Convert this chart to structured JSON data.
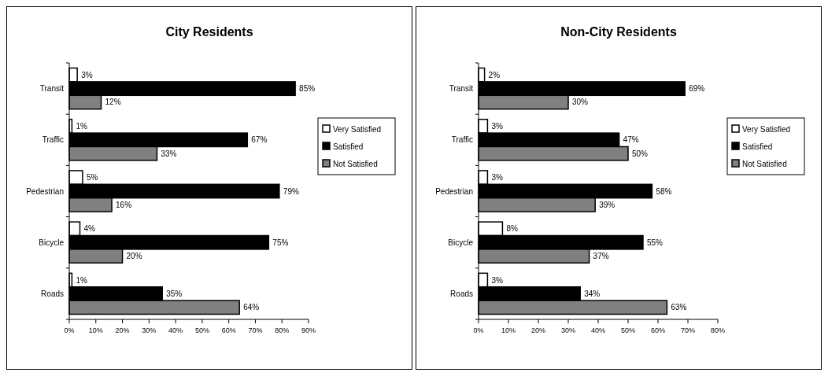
{
  "chart_data": [
    {
      "type": "bar",
      "orientation": "horizontal",
      "title": "City Residents",
      "categories": [
        "Transit",
        "Traffic",
        "Pedestrian",
        "Bicycle",
        "Roads"
      ],
      "series": [
        {
          "name": "Very Satisfied",
          "color": "#ffffff",
          "values": [
            3,
            1,
            5,
            4,
            1
          ],
          "value_labels": [
            "3%",
            "1%",
            "5%",
            "4%",
            "1%"
          ]
        },
        {
          "name": "Satisfied",
          "color": "#000000",
          "values": [
            85,
            67,
            79,
            75,
            35
          ],
          "value_labels": [
            "85%",
            "67%",
            "79%",
            "75%",
            "35%"
          ]
        },
        {
          "name": "Not Satisfied",
          "color": "#808080",
          "values": [
            12,
            33,
            16,
            20,
            64
          ],
          "value_labels": [
            "12%",
            "33%",
            "16%",
            "20%",
            "64%"
          ]
        }
      ],
      "xlim": [
        0,
        90
      ],
      "xticks": [
        {
          "value": 0,
          "label": "0%"
        },
        {
          "value": 10,
          "label": "10%"
        },
        {
          "value": 20,
          "label": "20%"
        },
        {
          "value": 30,
          "label": "30%"
        },
        {
          "value": 40,
          "label": "40%"
        },
        {
          "value": 50,
          "label": "50%"
        },
        {
          "value": 60,
          "label": "60%"
        },
        {
          "value": 70,
          "label": "70%"
        },
        {
          "value": 80,
          "label": "80%"
        },
        {
          "value": 90,
          "label": "90%"
        }
      ],
      "legend": "right"
    },
    {
      "type": "bar",
      "orientation": "horizontal",
      "title": "Non-City Residents",
      "categories": [
        "Transit",
        "Traffic",
        "Pedestrian",
        "Bicycle",
        "Roads"
      ],
      "series": [
        {
          "name": "Very Satisfied",
          "color": "#ffffff",
          "values": [
            2,
            3,
            3,
            8,
            3
          ],
          "value_labels": [
            "2%",
            "3%",
            "3%",
            "8%",
            "3%"
          ]
        },
        {
          "name": "Satisfied",
          "color": "#000000",
          "values": [
            69,
            47,
            58,
            55,
            34
          ],
          "value_labels": [
            "69%",
            "47%",
            "58%",
            "55%",
            "34%"
          ]
        },
        {
          "name": "Not Satisfied",
          "color": "#808080",
          "values": [
            30,
            50,
            39,
            37,
            63
          ],
          "value_labels": [
            "30%",
            "50%",
            "39%",
            "37%",
            "63%"
          ]
        }
      ],
      "xlim": [
        0,
        80
      ],
      "xticks": [
        {
          "value": 0,
          "label": "0%"
        },
        {
          "value": 10,
          "label": "10%"
        },
        {
          "value": 20,
          "label": "20%"
        },
        {
          "value": 30,
          "label": "30%"
        },
        {
          "value": 40,
          "label": "40%"
        },
        {
          "value": 50,
          "label": "50%"
        },
        {
          "value": 60,
          "label": "60%"
        },
        {
          "value": 70,
          "label": "70%"
        },
        {
          "value": 80,
          "label": "80%"
        }
      ],
      "legend": "right"
    }
  ]
}
